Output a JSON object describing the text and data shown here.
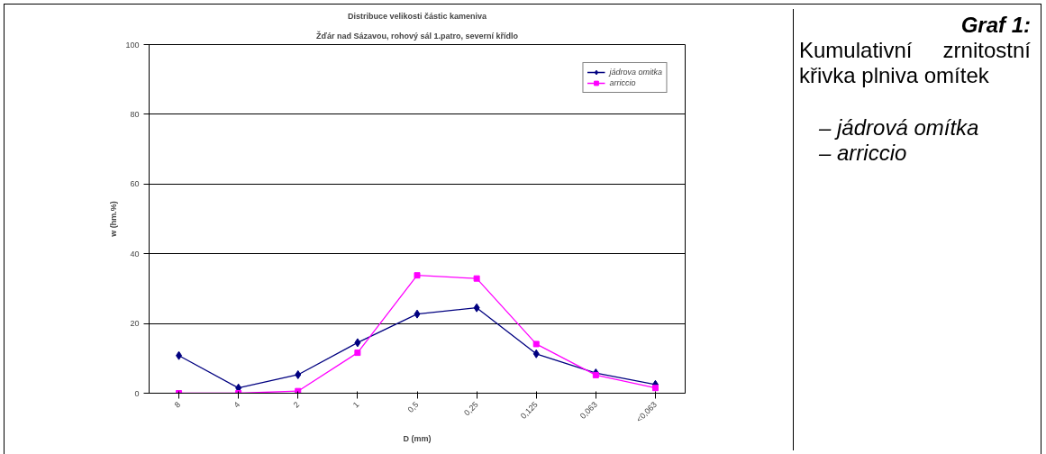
{
  "chart_data": {
    "type": "line",
    "title": "Distribuce velikosti částic kameniva",
    "subtitle": "Žďár nad Sázavou, rohový sál 1.patro, severní křídlo",
    "xlabel": "D (mm)",
    "ylabel": "w (hm.%)",
    "categories": [
      "8",
      "4",
      "2",
      "1",
      "0,5",
      "0,25",
      "0,125",
      "0,063",
      "<0,063"
    ],
    "series": [
      {
        "name": "jádrova omitka",
        "color": "#000080",
        "marker": "diamond",
        "values": [
          10.8,
          1.5,
          5.3,
          14.5,
          22.7,
          24.5,
          11.3,
          5.8,
          2.5
        ]
      },
      {
        "name": "arriccio",
        "color": "#ff00ff",
        "marker": "square",
        "values": [
          0,
          0,
          0.6,
          11.6,
          33.8,
          32.9,
          14.1,
          5.2,
          1.5
        ]
      }
    ],
    "ylim": [
      0,
      100
    ],
    "yticks": [
      0,
      20,
      40,
      60,
      80,
      100
    ],
    "grid": "y",
    "legend": "top right",
    "annotations": [
      "Graf 1:",
      "Kumulativní zrnitostní křivka plniva omítek",
      "– jádrová omítka",
      "– arriccio"
    ]
  }
}
